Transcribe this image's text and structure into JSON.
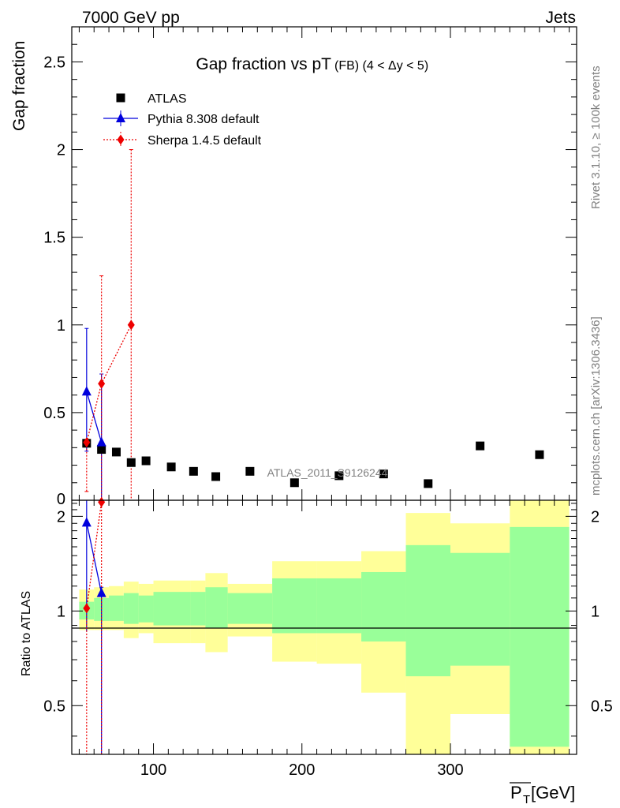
{
  "header": {
    "left": "7000 GeV pp",
    "right": "Jets"
  },
  "side": {
    "rivet": "Rivet 3.1.10, ≥ 100k events",
    "mcplots": "mcplots.cern.ch [arXiv:1306.3436]"
  },
  "colors": {
    "atlas": "#000000",
    "pythia": "#0000dd",
    "sherpa": "#ee0000",
    "band_inner": "#99ff99",
    "band_outer": "#ffff99"
  },
  "chart_data": [
    {
      "panel": "main",
      "type": "scatter",
      "title_main": "Gap fraction vs pT",
      "title_sub": "(FB) (4 < Δy < 5)",
      "ylabel": "Gap fraction",
      "ylim": [
        0,
        2.7
      ],
      "xlim": [
        45,
        385
      ],
      "yticks": [
        "0.5",
        "1",
        "1.5",
        "2",
        "2.5"
      ],
      "ytick_values": [
        0.5,
        1,
        1.5,
        2,
        2.5
      ],
      "ytick_zero": "0",
      "watermark": "ATLAS_2011_S9126244",
      "legend": {
        "position": "top-left",
        "entries": [
          "ATLAS",
          "Pythia 8.308 default",
          "Sherpa 1.4.5 default"
        ]
      },
      "series": [
        {
          "name": "ATLAS",
          "marker": "square",
          "x": [
            55,
            65,
            75,
            85,
            95,
            112,
            127,
            142,
            165,
            195,
            225,
            255,
            285,
            320,
            360
          ],
          "y": [
            0.325,
            0.29,
            0.275,
            0.215,
            0.225,
            0.19,
            0.165,
            0.135,
            0.165,
            0.1,
            0.14,
            0.15,
            0.095,
            0.31,
            0.26
          ]
        },
        {
          "name": "Pythia 8.308 default",
          "marker": "triangle",
          "x": [
            55,
            65
          ],
          "y": [
            0.62,
            0.33
          ],
          "yerr_low": [
            0.34,
            0.33
          ],
          "yerr_high": [
            0.36,
            0.39
          ]
        },
        {
          "name": "Sherpa 1.4.5 default",
          "marker": "diamond",
          "x": [
            55,
            65,
            85
          ],
          "y": [
            0.33,
            0.665,
            1.0
          ],
          "yerr_low": [
            0.28,
            0.665,
            1.0
          ],
          "yerr_high": [
            0.0,
            0.615,
            1.0
          ]
        }
      ]
    },
    {
      "panel": "ratio",
      "type": "line",
      "ylabel": "Ratio to ATLAS",
      "xlabel": "P̅T [GeV]",
      "xlabel_main": "P",
      "xlabel_sub": "T",
      "xlabel_unit": " [GeV]",
      "ylim": [
        0.35,
        2.25
      ],
      "xlim": [
        45,
        385
      ],
      "yticks": [
        "0.5",
        "1",
        "2"
      ],
      "ytick_values": [
        0.5,
        1,
        2
      ],
      "xticks": [
        "100",
        "200",
        "300"
      ],
      "xtick_values": [
        100,
        200,
        300
      ],
      "bands": {
        "edges": [
          50,
          60,
          70,
          80,
          90,
          100,
          125,
          135,
          150,
          180,
          210,
          240,
          270,
          300,
          340,
          380
        ],
        "outer_low": [
          0.87,
          0.87,
          0.87,
          0.82,
          0.85,
          0.79,
          0.79,
          0.74,
          0.83,
          0.69,
          0.68,
          0.55,
          0.35,
          0.47,
          0.35
        ],
        "outer_high": [
          1.17,
          1.19,
          1.2,
          1.24,
          1.22,
          1.25,
          1.25,
          1.32,
          1.22,
          1.44,
          1.44,
          1.55,
          2.05,
          1.9,
          2.25
        ],
        "inner_low": [
          0.94,
          0.93,
          0.93,
          0.91,
          0.92,
          0.9,
          0.9,
          0.88,
          0.91,
          0.85,
          0.85,
          0.8,
          0.62,
          0.67,
          0.37
        ],
        "inner_high": [
          1.07,
          1.1,
          1.12,
          1.14,
          1.12,
          1.15,
          1.15,
          1.19,
          1.14,
          1.27,
          1.27,
          1.33,
          1.62,
          1.53,
          1.85
        ]
      },
      "series": [
        {
          "name": "Pythia 8.308 default",
          "marker": "triangle",
          "x": [
            55,
            65
          ],
          "y": [
            1.91,
            1.14
          ],
          "yerr_low": [
            1.05,
            1.14
          ],
          "yerr_high": [
            0.34,
            0.05
          ]
        },
        {
          "name": "Sherpa 1.4.5 default",
          "marker": "diamond",
          "x": [
            55,
            65
          ],
          "y": [
            1.02,
            2.27
          ],
          "yerr_low": [
            1.02,
            2.27
          ],
          "yerr_high": [
            0.0,
            0.0
          ]
        }
      ]
    }
  ]
}
